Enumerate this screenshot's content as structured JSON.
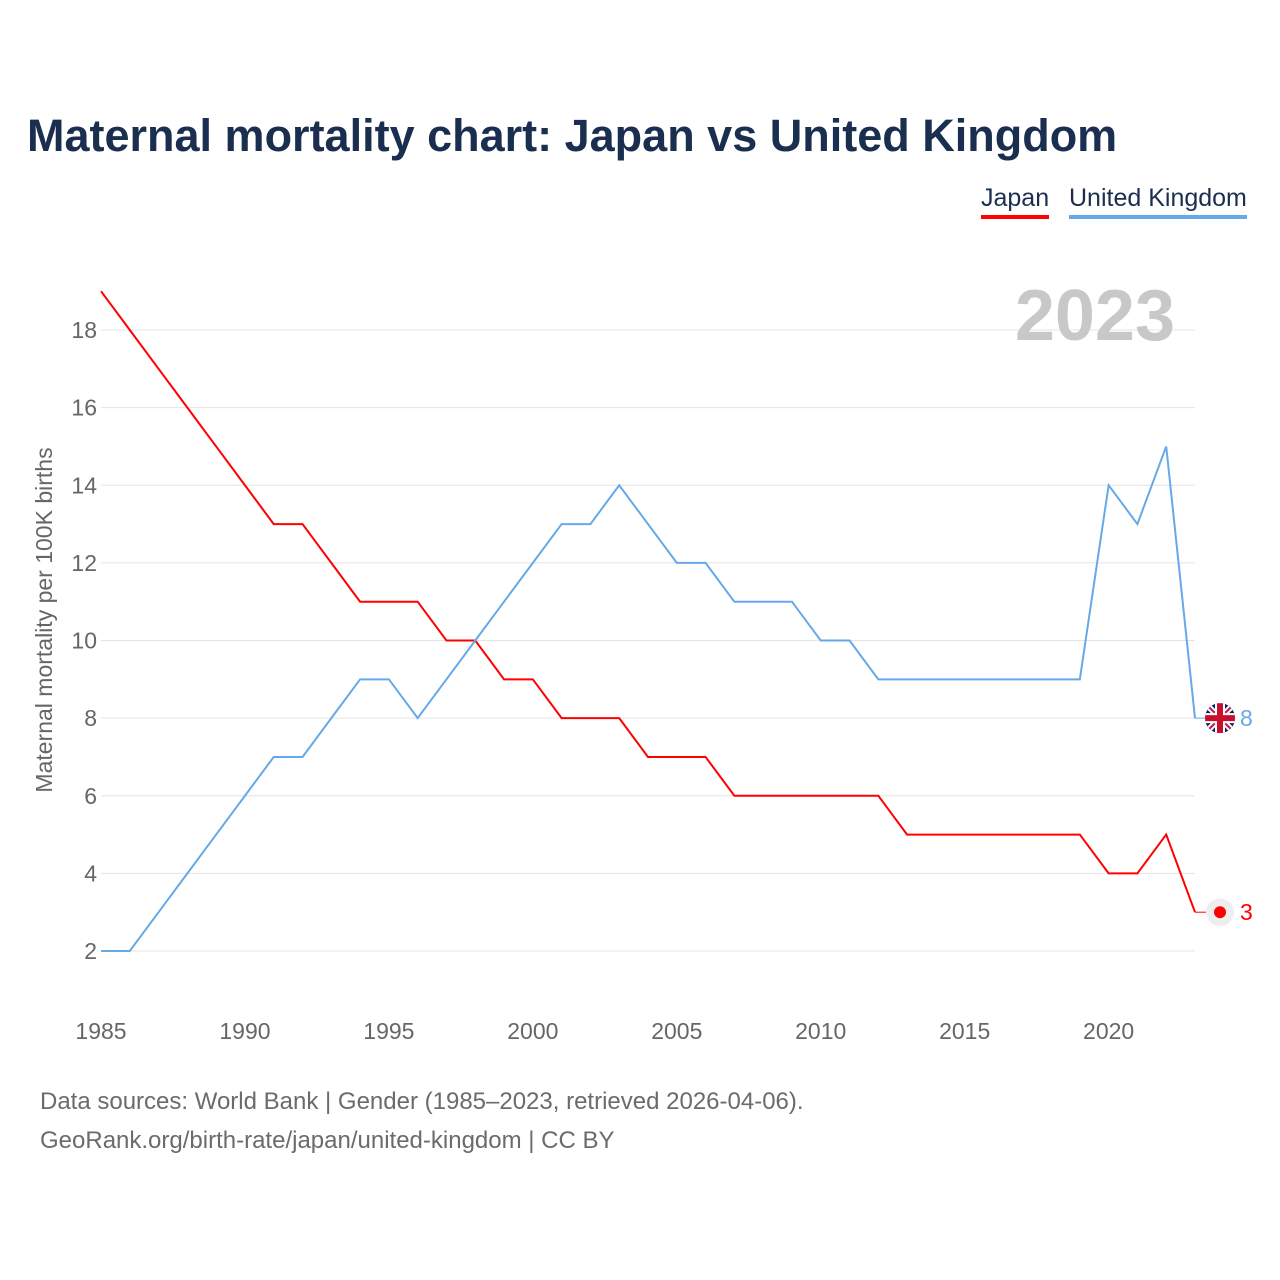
{
  "title": "Maternal mortality chart: Japan vs United Kingdom",
  "legend": [
    "Japan",
    "United Kingdom"
  ],
  "year_label": "2023",
  "footer": {
    "line1": "Data sources: World Bank | Gender (1985–2023, retrieved 2026-04-06).",
    "line2": "GeoRank.org/birth-rate/japan/united-kingdom | CC BY"
  },
  "end_labels": {
    "japan": "3",
    "uk": "8"
  },
  "chart_data": {
    "type": "line",
    "title": "Maternal mortality chart: Japan vs United Kingdom",
    "xlabel": "",
    "ylabel": "Maternal mortality per 100K births",
    "xlim": [
      1985,
      2023
    ],
    "ylim": [
      1,
      19.5
    ],
    "x_ticks": [
      1985,
      1990,
      1995,
      2000,
      2005,
      2010,
      2015,
      2020
    ],
    "y_ticks": [
      2,
      4,
      6,
      8,
      10,
      12,
      14,
      16,
      18
    ],
    "grid": true,
    "legend_position": "top-right",
    "x": [
      1985,
      1986,
      1987,
      1988,
      1989,
      1990,
      1991,
      1992,
      1993,
      1994,
      1995,
      1996,
      1997,
      1998,
      1999,
      2000,
      2001,
      2002,
      2003,
      2004,
      2005,
      2006,
      2007,
      2008,
      2009,
      2010,
      2011,
      2012,
      2013,
      2014,
      2015,
      2016,
      2017,
      2018,
      2019,
      2020,
      2021,
      2022,
      2023
    ],
    "series": [
      {
        "name": "Japan",
        "color": "#ff0000",
        "values": [
          19,
          18,
          17,
          16,
          15,
          14,
          13,
          13,
          12,
          11,
          11,
          11,
          10,
          10,
          9,
          9,
          8,
          8,
          8,
          7,
          7,
          7,
          6,
          6,
          6,
          6,
          6,
          6,
          5,
          5,
          5,
          5,
          5,
          5,
          5,
          4,
          4,
          5,
          3
        ]
      },
      {
        "name": "United Kingdom",
        "color": "#65a9e8",
        "values": [
          2,
          2,
          3,
          4,
          5,
          6,
          7,
          7,
          8,
          9,
          9,
          8,
          9,
          10,
          11,
          12,
          13,
          13,
          14,
          13,
          12,
          12,
          11,
          11,
          11,
          10,
          10,
          9,
          9,
          9,
          9,
          9,
          9,
          9,
          9,
          14,
          13,
          15,
          8
        ]
      }
    ]
  }
}
